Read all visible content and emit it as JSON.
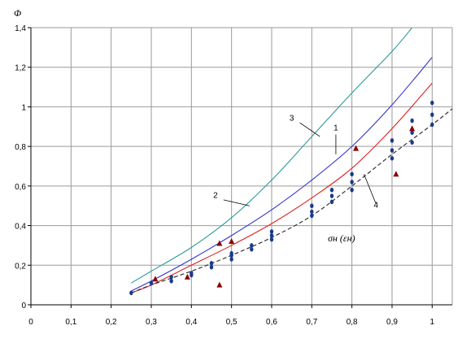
{
  "chart_data": {
    "type": "line",
    "title": "",
    "ylabel": "Φ",
    "xlabel": "",
    "xlim": [
      0,
      1.05
    ],
    "ylim": [
      0,
      1.4
    ],
    "x_ticks": [
      "0",
      "0,1",
      "0,2",
      "0,3",
      "0,4",
      "0,5",
      "0,6",
      "0,7",
      "0,8",
      "0,9",
      "1"
    ],
    "y_ticks": [
      "0",
      "0,2",
      "0,4",
      "0,6",
      "0,8",
      "1",
      "1,2",
      "1,4"
    ],
    "grid": true,
    "annotation_text": "σн (εн)",
    "series": [
      {
        "label": "1",
        "color": "#3333cc",
        "x": [
          0.25,
          0.3,
          0.4,
          0.5,
          0.6,
          0.7,
          0.8,
          0.9,
          1.0
        ],
        "y": [
          0.07,
          0.12,
          0.23,
          0.35,
          0.48,
          0.63,
          0.8,
          1.01,
          1.25
        ]
      },
      {
        "label": "2",
        "color": "#2e9a9a",
        "x": [
          0.25,
          0.3,
          0.4,
          0.5,
          0.6,
          0.7,
          0.8,
          0.9,
          0.95
        ],
        "y": [
          0.11,
          0.17,
          0.29,
          0.44,
          0.63,
          0.85,
          1.07,
          1.28,
          1.4
        ]
      },
      {
        "label": "",
        "color": "#dd2222",
        "x": [
          0.25,
          0.3,
          0.4,
          0.5,
          0.6,
          0.7,
          0.8,
          0.9,
          1.0
        ],
        "y": [
          0.06,
          0.1,
          0.2,
          0.3,
          0.41,
          0.54,
          0.69,
          0.89,
          1.12
        ]
      },
      {
        "label": "4",
        "color": "#333333",
        "x": [
          0.25,
          0.3,
          0.4,
          0.5,
          0.6,
          0.7,
          0.8,
          0.9,
          1.0,
          1.05
        ],
        "y": [
          0.06,
          0.1,
          0.17,
          0.25,
          0.34,
          0.45,
          0.6,
          0.76,
          0.91,
          0.99
        ]
      }
    ],
    "blue_points": {
      "x": [
        0.25,
        0.3,
        0.35,
        0.35,
        0.4,
        0.4,
        0.45,
        0.45,
        0.5,
        0.5,
        0.5,
        0.55,
        0.55,
        0.6,
        0.6,
        0.6,
        0.7,
        0.7,
        0.7,
        0.75,
        0.75,
        0.75,
        0.8,
        0.8,
        0.8,
        0.9,
        0.9,
        0.9,
        0.95,
        0.95,
        0.95,
        1.0,
        1.0,
        1.0
      ],
      "y": [
        0.06,
        0.11,
        0.12,
        0.14,
        0.16,
        0.15,
        0.19,
        0.21,
        0.23,
        0.25,
        0.26,
        0.28,
        0.3,
        0.33,
        0.35,
        0.37,
        0.45,
        0.47,
        0.5,
        0.52,
        0.55,
        0.58,
        0.58,
        0.62,
        0.66,
        0.74,
        0.78,
        0.83,
        0.82,
        0.87,
        0.93,
        0.91,
        0.96,
        1.02
      ]
    },
    "red_triangles": {
      "x": [
        0.31,
        0.39,
        0.47,
        0.47,
        0.5,
        0.81,
        0.91,
        0.95
      ],
      "y": [
        0.13,
        0.14,
        0.31,
        0.1,
        0.32,
        0.79,
        0.66,
        0.89
      ]
    },
    "labels": [
      {
        "text": "1",
        "x": 0.76,
        "y": 0.88
      },
      {
        "text": "2",
        "x": 0.46,
        "y": 0.54
      },
      {
        "text": "3",
        "x": 0.65,
        "y": 0.93
      },
      {
        "text": "4",
        "x": 0.86,
        "y": 0.49
      }
    ],
    "teal_curve_label": "3"
  }
}
